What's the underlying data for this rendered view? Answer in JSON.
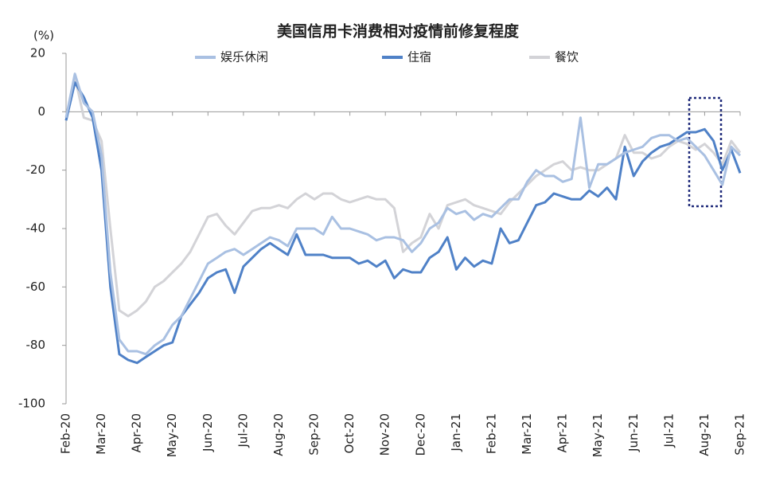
{
  "chart_data": {
    "type": "line",
    "title": "美国信用卡消费相对疫情前修复程度",
    "y_label": "(%)",
    "categories": [
      "Feb-20",
      null,
      null,
      null,
      "Mar-20",
      null,
      null,
      null,
      "Apr-20",
      null,
      null,
      null,
      "May-20",
      null,
      null,
      null,
      "Jun-20",
      null,
      null,
      null,
      "Jul-20",
      null,
      null,
      null,
      "Aug-20",
      null,
      null,
      null,
      "Sep-20",
      null,
      null,
      null,
      "Oct-20",
      null,
      null,
      null,
      "Nov-20",
      null,
      null,
      null,
      "Dec-20",
      null,
      null,
      null,
      "Jan-21",
      null,
      null,
      null,
      "Feb-21",
      null,
      null,
      null,
      "Mar-21",
      null,
      null,
      null,
      "Apr-21",
      null,
      null,
      null,
      "May-21",
      null,
      null,
      null,
      "Jun-21",
      null,
      null,
      null,
      "Jul-21",
      null,
      null,
      null,
      "Aug-21",
      null,
      null,
      null,
      "Sep-21"
    ],
    "series": [
      {
        "name": "娱乐休闲",
        "color": "#a9c0e2",
        "values": [
          -2,
          13,
          3,
          0,
          -15,
          -55,
          -78,
          -82,
          -82,
          -83,
          -80,
          -78,
          -73,
          -70,
          -64,
          -58,
          -52,
          -50,
          -48,
          -47,
          -49,
          -47,
          -45,
          -43,
          -44,
          -46,
          -40,
          -40,
          -40,
          -42,
          -36,
          -40,
          -40,
          -41,
          -42,
          -44,
          -43,
          -43,
          -44,
          -48,
          -45,
          -40,
          -38,
          -33,
          -35,
          -34,
          -37,
          -35,
          -36,
          -33,
          -30,
          -30,
          -24,
          -20,
          -22,
          -22,
          -24,
          -23,
          -2,
          -26,
          -18,
          -18,
          -16,
          -14,
          -13,
          -12,
          -9,
          -8,
          -8,
          -10,
          -9,
          -12,
          -15,
          -20,
          -25,
          -12,
          -15
        ]
      },
      {
        "name": "住宿",
        "color": "#4f81c7",
        "values": [
          -3,
          10,
          5,
          -2,
          -20,
          -60,
          -83,
          -85,
          -86,
          -84,
          -82,
          -80,
          -79,
          -70,
          -66,
          -62,
          -57,
          -55,
          -54,
          -62,
          -53,
          -50,
          -47,
          -45,
          -47,
          -49,
          -42,
          -49,
          -49,
          -49,
          -50,
          -50,
          -50,
          -52,
          -51,
          -53,
          -51,
          -57,
          -54,
          -55,
          -55,
          -50,
          -48,
          -43,
          -54,
          -50,
          -53,
          -51,
          -52,
          -40,
          -45,
          -44,
          -38,
          -32,
          -31,
          -28,
          -29,
          -30,
          -30,
          -27,
          -29,
          -26,
          -30,
          -12,
          -22,
          -17,
          -14,
          -12,
          -11,
          -9,
          -7,
          -7,
          -6,
          -10,
          -20,
          -13,
          -21
        ]
      },
      {
        "name": "餐饮",
        "color": "#d3d3d7",
        "values": [
          -3,
          12,
          -2,
          -3,
          -10,
          -40,
          -68,
          -70,
          -68,
          -65,
          -60,
          -58,
          -55,
          -52,
          -48,
          -42,
          -36,
          -35,
          -39,
          -42,
          -38,
          -34,
          -33,
          -33,
          -32,
          -33,
          -30,
          -28,
          -30,
          -28,
          -28,
          -30,
          -31,
          -30,
          -29,
          -30,
          -30,
          -33,
          -48,
          -45,
          -43,
          -35,
          -40,
          -32,
          -31,
          -30,
          -32,
          -33,
          -34,
          -35,
          -31,
          -28,
          -25,
          -22,
          -20,
          -18,
          -17,
          -20,
          -19,
          -20,
          -20,
          -18,
          -16,
          -8,
          -14,
          -14,
          -16,
          -15,
          -12,
          -10,
          -11,
          -13,
          -11,
          -14,
          -18,
          -10,
          -14
        ]
      }
    ],
    "ylim": [
      -100,
      20
    ],
    "yticks": [
      -100,
      -80,
      -60,
      -40,
      -20,
      0,
      20
    ],
    "grid": false
  }
}
